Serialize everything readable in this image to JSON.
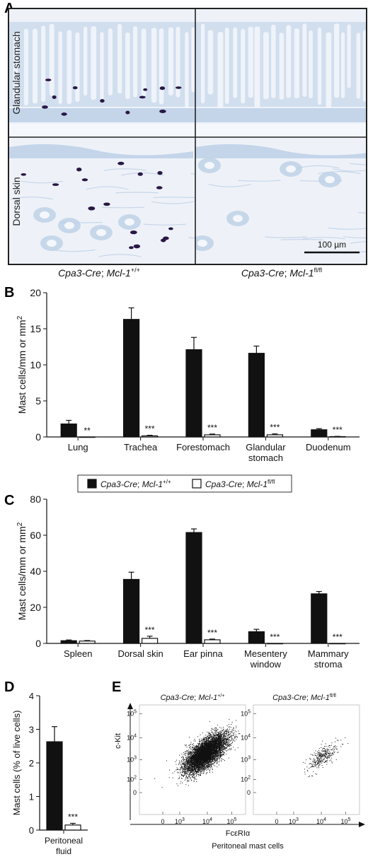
{
  "panel_a": {
    "letter": "A",
    "row_labels": [
      "Glandular stomach",
      "Dorsal skin"
    ],
    "col_labels": [
      {
        "main": "Cpa3-Cre",
        "sep": "; ",
        "gene": "Mcl-1",
        "sup": "+/+"
      },
      {
        "main": "Cpa3-Cre",
        "sep": "; ",
        "gene": "Mcl-1",
        "sup": "fl/fl"
      }
    ],
    "scale_bar": "100 µm"
  },
  "legend": {
    "entries": [
      {
        "main": "Cpa3-Cre",
        "sep": "; ",
        "gene": "Mcl-1",
        "sup": "+/+",
        "fill": "#111111"
      },
      {
        "main": "Cpa3-Cre",
        "sep": "; ",
        "gene": "Mcl-1",
        "sup": "fl/fl",
        "fill": "#ffffff"
      }
    ]
  },
  "colors": {
    "wt": "#111111",
    "ko": "#ffffff",
    "tissue": "#b9cde6",
    "mast": "#2a1745"
  },
  "chart_data": [
    {
      "id": "B",
      "letter": "B",
      "type": "bar",
      "ylabel_main": "Mast cells/mm or mm",
      "ylabel_sup": "2",
      "ylim": [
        0,
        20
      ],
      "yticks": [
        0,
        5,
        10,
        15,
        20
      ],
      "categories": [
        [
          "Lung"
        ],
        [
          "Trachea"
        ],
        [
          "Forestomach"
        ],
        [
          "Glandular",
          "stomach"
        ],
        [
          "Duodenum"
        ]
      ],
      "series": [
        {
          "values": [
            1.8,
            16.3,
            12.1,
            11.6,
            1.0
          ],
          "errors": [
            0.5,
            1.6,
            1.7,
            1.0,
            0.15
          ]
        },
        {
          "values": [
            0.0,
            0.15,
            0.3,
            0.3,
            0.05
          ],
          "errors": [
            0.0,
            0.08,
            0.1,
            0.12,
            0.03
          ]
        }
      ],
      "significance": [
        "**",
        "***",
        "***",
        "***",
        "***"
      ]
    },
    {
      "id": "C",
      "letter": "C",
      "type": "bar",
      "ylabel_main": "Mast cells/mm or mm",
      "ylabel_sup": "2",
      "ylim": [
        0,
        80
      ],
      "yticks": [
        0,
        20,
        40,
        60,
        80
      ],
      "categories": [
        [
          "Spleen"
        ],
        [
          "Dorsal skin"
        ],
        [
          "Ear pinna"
        ],
        [
          "Mesentery",
          "window"
        ],
        [
          "Mammary",
          "stroma"
        ]
      ],
      "series": [
        {
          "values": [
            1.5,
            35.5,
            61.5,
            6.5,
            27.5
          ],
          "errors": [
            0.4,
            4.0,
            2.0,
            1.3,
            1.3
          ]
        },
        {
          "values": [
            1.3,
            2.8,
            2.0,
            0.0,
            0.0
          ],
          "errors": [
            0.3,
            1.2,
            0.4,
            0.0,
            0.0
          ]
        }
      ],
      "significance": [
        "",
        "***",
        "***",
        "***",
        "***"
      ]
    },
    {
      "id": "D",
      "letter": "D",
      "type": "bar",
      "ylabel": "Mast cells (% of live cells)",
      "ylim": [
        0,
        4
      ],
      "yticks": [
        0,
        1,
        2,
        3,
        4
      ],
      "categories": [
        [
          "Peritoneal",
          "fluid"
        ]
      ],
      "series": [
        {
          "values": [
            2.63
          ],
          "errors": [
            0.45
          ]
        },
        {
          "values": [
            0.15
          ],
          "errors": [
            0.05
          ]
        }
      ],
      "significance": [
        "***"
      ]
    },
    {
      "id": "E",
      "letter": "E",
      "type": "scatter",
      "xlabel_main": "FcεRIα",
      "ylabel": "c-Kit",
      "caption": "Peritoneal mast cells",
      "plots": [
        {
          "title": {
            "main": "Cpa3-Cre",
            "sep": "; ",
            "gene": "Mcl-1",
            "sup": "+/+"
          },
          "points": 6000
        },
        {
          "title": {
            "main": "Cpa3-Cre",
            "sep": "; ",
            "gene": "Mcl-1",
            "sup": "fl/fl"
          },
          "points": 320
        }
      ],
      "x_ticks": [
        {
          "base": "0",
          "sup": ""
        },
        {
          "base": "10",
          "sup": "3"
        },
        {
          "base": "10",
          "sup": "4"
        },
        {
          "base": "10",
          "sup": "5"
        }
      ],
      "y_ticks": [
        {
          "base": "0",
          "sup": ""
        },
        {
          "base": "10",
          "sup": "2"
        },
        {
          "base": "10",
          "sup": "3"
        },
        {
          "base": "10",
          "sup": "4"
        },
        {
          "base": "10",
          "sup": "5"
        }
      ]
    }
  ]
}
